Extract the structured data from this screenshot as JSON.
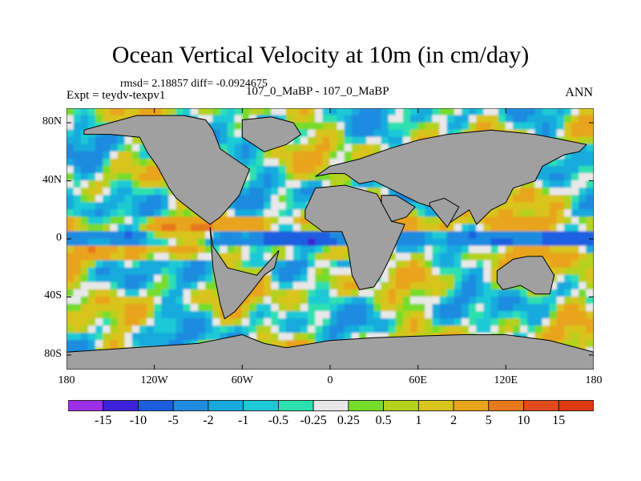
{
  "title": "Ocean Vertical Velocity at 10m (in cm/day)",
  "stats_text": "rmsd= 2.18857  diff= -0.0924675",
  "expt_text": "Expt = teydv-texpv1",
  "case_text": "107_0_MaBP - 107_0_MaBP",
  "season_text": "ANN",
  "chart_data": {
    "type": "heatmap",
    "title": "Ocean Vertical Velocity at 10m (in cm/day)",
    "units": "cm/day",
    "xlabel": "",
    "ylabel": "",
    "x_range": [
      -180,
      180
    ],
    "y_range": [
      -90,
      90
    ],
    "x_ticks": [
      {
        "value": -180,
        "label": "180"
      },
      {
        "value": -120,
        "label": "120W"
      },
      {
        "value": -60,
        "label": "60W"
      },
      {
        "value": 0,
        "label": "0"
      },
      {
        "value": 60,
        "label": "60E"
      },
      {
        "value": 120,
        "label": "120E"
      },
      {
        "value": 180,
        "label": "180"
      }
    ],
    "y_ticks": [
      {
        "value": 80,
        "label": "80N"
      },
      {
        "value": 40,
        "label": "40N"
      },
      {
        "value": 0,
        "label": "0"
      },
      {
        "value": -40,
        "label": "40S"
      },
      {
        "value": -80,
        "label": "80S"
      }
    ],
    "land_color": "#a0a0a0",
    "contour_levels": [
      "-15",
      "-10",
      "-5",
      "-2",
      "-1",
      "-0.5",
      "-0.25",
      "0.25",
      "0.5",
      "1",
      "2",
      "5",
      "10",
      "15"
    ],
    "colors": [
      "#9b30e8",
      "#3c22d8",
      "#1c5ee0",
      "#1f8be0",
      "#17aadd",
      "#1ec9d6",
      "#2ee0b0",
      "#e8e8e8",
      "#76dc2a",
      "#b4d21c",
      "#d8c41a",
      "#e8a41a",
      "#e8781c",
      "#e04a1c",
      "#dc3a10"
    ],
    "land_regions": [
      {
        "name": "North America",
        "lon": [
          -168,
          -150,
          -130,
          -125,
          -118,
          -110,
          -105,
          -95,
          -82,
          -75,
          -62,
          -55,
          -65,
          -75,
          -80,
          -85,
          -100,
          -110,
          -118,
          -125,
          -132,
          -150,
          -168
        ],
        "lat": [
          72,
          72,
          70,
          60,
          50,
          35,
          28,
          20,
          10,
          15,
          30,
          48,
          55,
          62,
          75,
          82,
          85,
          85,
          85,
          85,
          85,
          80,
          75
        ]
      },
      {
        "name": "Greenland",
        "lon": [
          -60,
          -40,
          -25,
          -20,
          -30,
          -45,
          -60
        ],
        "lat": [
          82,
          84,
          80,
          72,
          65,
          60,
          70
        ]
      },
      {
        "name": "South America",
        "lon": [
          -82,
          -80,
          -70,
          -50,
          -35,
          -38,
          -45,
          -55,
          -65,
          -72,
          -75,
          -80
        ],
        "lat": [
          8,
          -5,
          -20,
          -25,
          -8,
          -20,
          -25,
          -38,
          -50,
          -55,
          -45,
          -20
        ]
      },
      {
        "name": "Africa",
        "lon": [
          -17,
          -10,
          10,
          32,
          42,
          51,
          40,
          35,
          30,
          20,
          15,
          12,
          8,
          -5,
          -17
        ],
        "lat": [
          20,
          35,
          37,
          31,
          12,
          10,
          -15,
          -25,
          -33,
          -35,
          -25,
          -5,
          5,
          5,
          14
        ]
      },
      {
        "name": "Eurasia",
        "lon": [
          -10,
          0,
          20,
          40,
          60,
          80,
          110,
          140,
          160,
          175,
          170,
          160,
          145,
          140,
          125,
          120,
          110,
          100,
          95,
          80,
          75,
          60,
          50,
          40,
          30,
          20,
          10,
          0,
          -10
        ],
        "lat": [
          43,
          50,
          55,
          62,
          68,
          72,
          75,
          72,
          68,
          65,
          60,
          58,
          50,
          40,
          35,
          25,
          20,
          10,
          20,
          10,
          20,
          25,
          30,
          35,
          40,
          38,
          45,
          45,
          43
        ]
      },
      {
        "name": "Arabia",
        "lon": [
          35,
          45,
          58,
          52,
          42,
          35
        ],
        "lat": [
          30,
          30,
          22,
          15,
          12,
          25
        ]
      },
      {
        "name": "India",
        "lon": [
          68,
          78,
          88,
          80,
          72,
          68
        ],
        "lat": [
          25,
          28,
          22,
          8,
          18,
          23
        ]
      },
      {
        "name": "Australia",
        "lon": [
          114,
          125,
          135,
          145,
          153,
          150,
          140,
          130,
          118,
          114
        ],
        "lat": [
          -22,
          -14,
          -12,
          -12,
          -25,
          -38,
          -38,
          -32,
          -35,
          -30
        ]
      },
      {
        "name": "Antarctica",
        "lon": [
          -180,
          -150,
          -120,
          -90,
          -60,
          -45,
          -30,
          0,
          30,
          60,
          90,
          120,
          150,
          180,
          180,
          -180
        ],
        "lat": [
          -78,
          -76,
          -74,
          -72,
          -66,
          -72,
          -75,
          -70,
          -68,
          -67,
          -66,
          -66,
          -70,
          -78,
          -90,
          -90
        ]
      }
    ],
    "colorbar_labels": [
      "-15",
      "-10",
      "-5",
      "-2",
      "-1",
      "-0.5",
      "-0.25",
      "0.25",
      "0.5",
      "1",
      "2",
      "5",
      "10",
      "15"
    ]
  }
}
